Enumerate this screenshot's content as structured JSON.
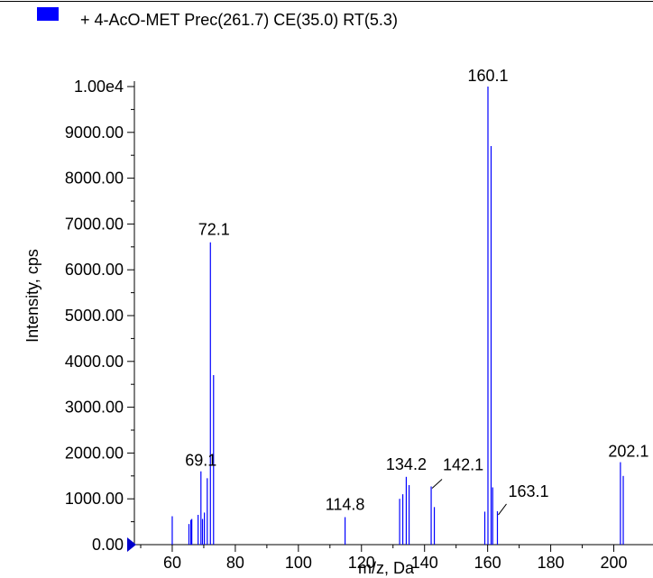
{
  "chart_data": {
    "type": "bar",
    "title": "+ 4-AcO-MET Prec(261.7) CE(35.0) RT(5.3)",
    "legend_color": "#0000ff",
    "series_color": "#0000ff",
    "xlabel": "m/z, Da",
    "ylabel": "Intensity, cps",
    "xlim": [
      48,
      209
    ],
    "ylim": [
      0,
      10000
    ],
    "x_ticks": [
      60,
      80,
      100,
      120,
      140,
      160,
      180,
      200
    ],
    "x_tick_labels": [
      "60",
      "80",
      "100",
      "120",
      "140",
      "160",
      "180",
      "200"
    ],
    "y_ticks": [
      0,
      1000,
      2000,
      3000,
      4000,
      5000,
      6000,
      7000,
      8000,
      9000,
      10000
    ],
    "y_tick_labels": [
      "0.00",
      "1000.00",
      "2000.00",
      "3000.00",
      "4000.00",
      "5000.00",
      "6000.00",
      "7000.00",
      "8000.00",
      "9000.00",
      "1.00e4"
    ],
    "grid": false,
    "peaks": [
      {
        "mz": 60.0,
        "intensity": 620
      },
      {
        "mz": 65.3,
        "intensity": 450
      },
      {
        "mz": 65.9,
        "intensity": 540
      },
      {
        "mz": 66.2,
        "intensity": 560
      },
      {
        "mz": 68.2,
        "intensity": 650
      },
      {
        "mz": 69.1,
        "intensity": 1600
      },
      {
        "mz": 69.6,
        "intensity": 560
      },
      {
        "mz": 70.2,
        "intensity": 700
      },
      {
        "mz": 71.1,
        "intensity": 1450
      },
      {
        "mz": 72.1,
        "intensity": 6600
      },
      {
        "mz": 73.1,
        "intensity": 3700
      },
      {
        "mz": 114.8,
        "intensity": 600
      },
      {
        "mz": 132.1,
        "intensity": 1000
      },
      {
        "mz": 133.1,
        "intensity": 1100
      },
      {
        "mz": 134.2,
        "intensity": 1480
      },
      {
        "mz": 135.1,
        "intensity": 1300
      },
      {
        "mz": 142.1,
        "intensity": 1270
      },
      {
        "mz": 143.1,
        "intensity": 820
      },
      {
        "mz": 159.1,
        "intensity": 720
      },
      {
        "mz": 160.1,
        "intensity": 10000
      },
      {
        "mz": 161.1,
        "intensity": 8700
      },
      {
        "mz": 161.6,
        "intensity": 1250
      },
      {
        "mz": 163.1,
        "intensity": 730
      },
      {
        "mz": 202.1,
        "intensity": 1800
      },
      {
        "mz": 203.0,
        "intensity": 1500
      }
    ],
    "annotations": [
      {
        "text": "160.1",
        "mz": 160.1,
        "intensity": 10000
      },
      {
        "text": "72.1",
        "mz": 72.1,
        "intensity": 6600
      },
      {
        "text": "69.1",
        "mz": 69.1,
        "intensity": 1600
      },
      {
        "text": "134.2",
        "mz": 134.2,
        "intensity": 1480
      },
      {
        "text": "142.1",
        "mz": 142.1,
        "intensity": 1270
      },
      {
        "text": "114.8",
        "mz": 114.8,
        "intensity": 600
      },
      {
        "text": "163.1",
        "mz": 163.1,
        "intensity": 730
      },
      {
        "text": "202.1",
        "mz": 202.1,
        "intensity": 1800
      }
    ]
  }
}
